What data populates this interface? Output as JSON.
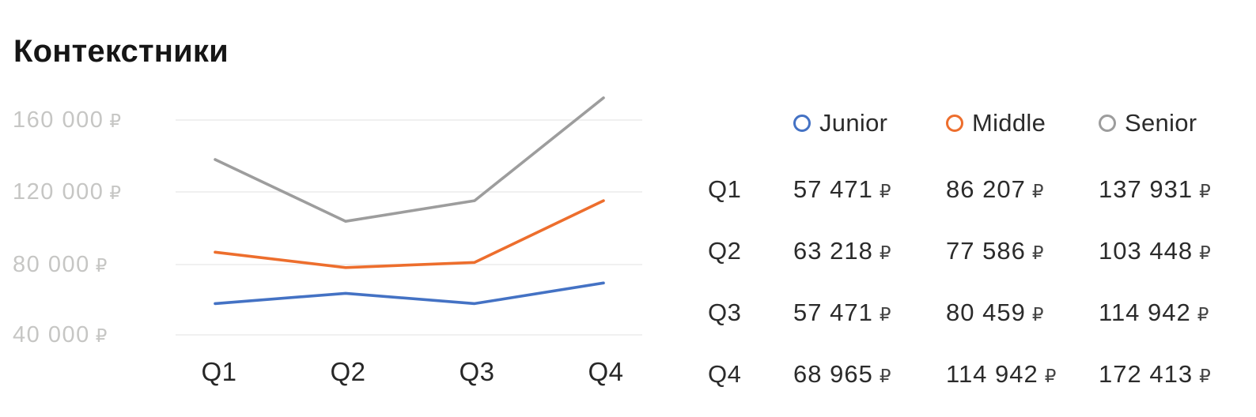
{
  "title": "Контекстники",
  "chart_data": {
    "type": "line",
    "title": "Контекстники",
    "categories": [
      "Q1",
      "Q2",
      "Q3",
      "Q4"
    ],
    "series": [
      {
        "name": "Junior",
        "color": "#4472C4",
        "values": [
          57471,
          63218,
          57471,
          68965
        ]
      },
      {
        "name": "Middle",
        "color": "#ED6E2D",
        "values": [
          86207,
          77586,
          80459,
          114942
        ]
      },
      {
        "name": "Senior",
        "color": "#9D9D9D",
        "values": [
          137931,
          103448,
          114942,
          172413
        ]
      }
    ],
    "yticks": {
      "values": [
        160000,
        120000,
        80000,
        40000
      ],
      "labels": [
        "160 000",
        "120 000",
        "80 000",
        "40 000"
      ]
    },
    "currency": "₽",
    "grid": true,
    "gridline_color": "#ECECEC",
    "axis_label_color": "#C6C6C4",
    "legend_position": "top-right",
    "xlabel": "",
    "ylabel": ""
  },
  "table": {
    "currency": "₽",
    "rows": [
      {
        "label": "Q1",
        "values": [
          "57 471",
          "86 207",
          "137 931"
        ]
      },
      {
        "label": "Q2",
        "values": [
          "63 218",
          "77 586",
          "103 448"
        ]
      },
      {
        "label": "Q3",
        "values": [
          "57 471",
          "80 459",
          "114 942"
        ]
      },
      {
        "label": "Q4",
        "values": [
          "68 965",
          "114 942",
          "172 413"
        ]
      }
    ]
  }
}
